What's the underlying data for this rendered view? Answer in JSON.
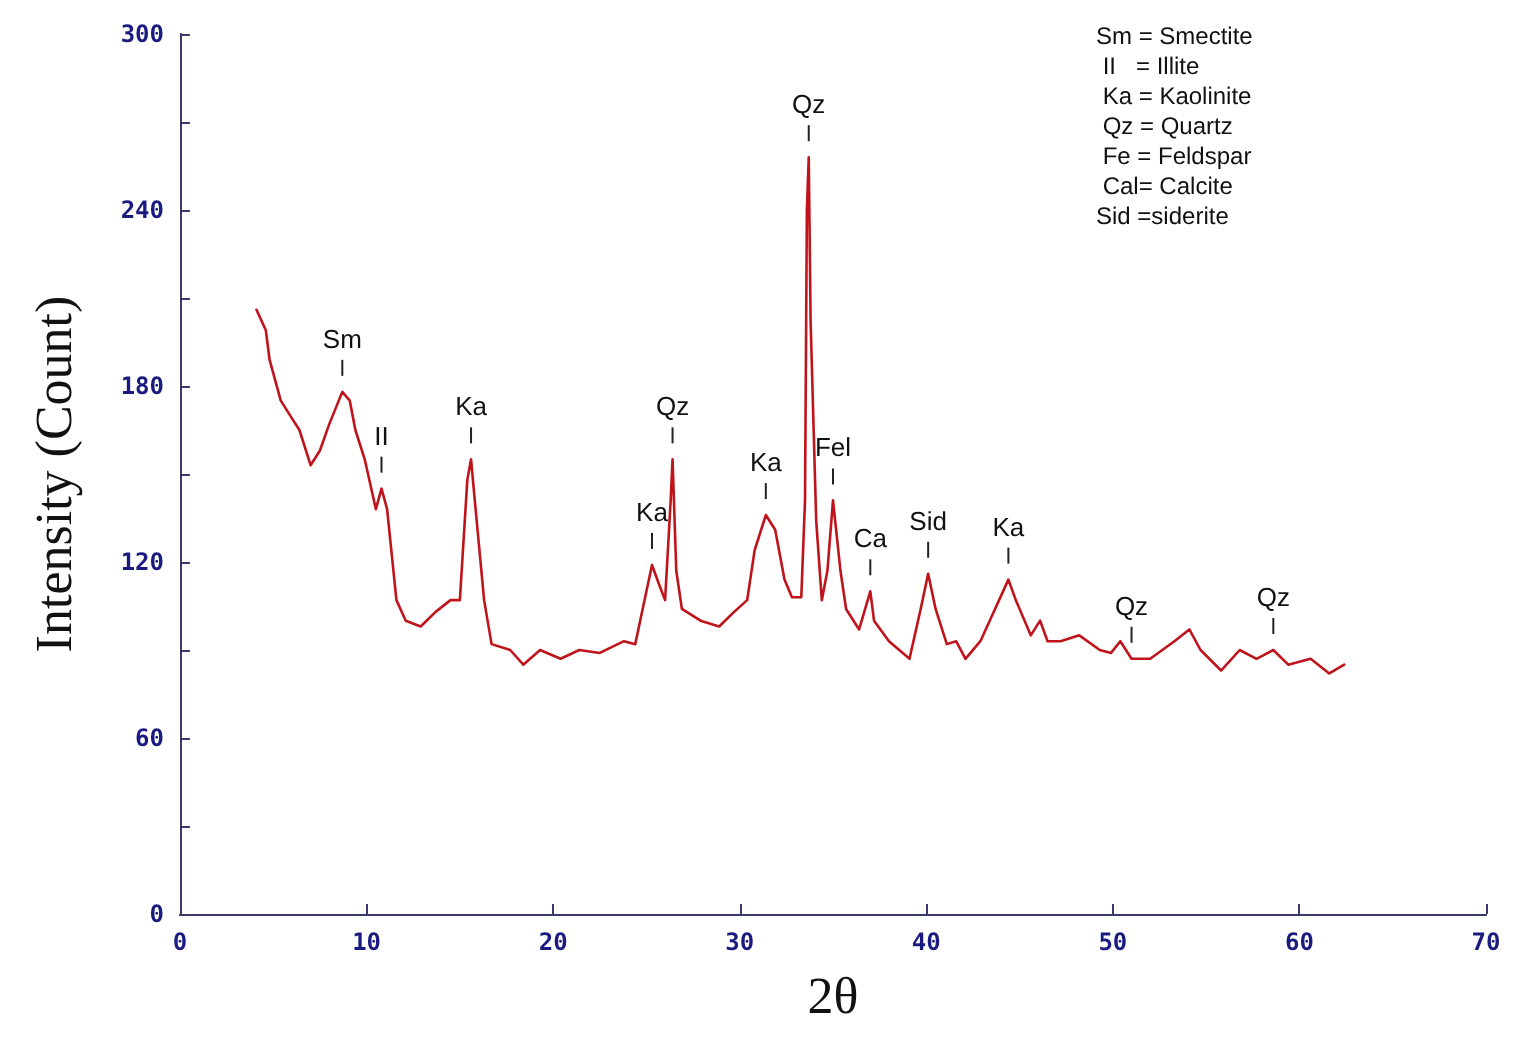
{
  "chart_data": {
    "type": "line",
    "xlabel": "2θ",
    "ylabel": "Intensity (Count)",
    "xlim": [
      0,
      70
    ],
    "xticks": [
      0,
      10,
      20,
      30,
      40,
      50,
      60,
      70
    ],
    "ylim": [
      0,
      300
    ],
    "yticks": [
      0,
      {
        "value": 30,
        "label": null
      },
      60,
      {
        "value": 90,
        "label": null
      },
      120,
      {
        "value": 150,
        "label": null
      },
      180,
      {
        "value": 210,
        "label": null
      },
      240,
      {
        "value": 270,
        "label": null
      },
      300
    ],
    "grid": false,
    "marker": "none",
    "line_style": "solid",
    "series": [
      {
        "color": "#c0141c",
        "x": [
          4.1,
          4.6,
          4.8,
          5.4,
          5.9,
          6.4,
          7.0,
          7.5,
          8.0,
          8.7,
          9.1,
          9.4,
          9.9,
          10.5,
          10.8,
          11.1,
          11.6,
          12.1,
          12.9,
          13.7,
          14.5,
          15.0,
          15.4,
          15.6,
          15.8,
          16.3,
          16.7,
          17.7,
          18.4,
          19.3,
          20.4,
          21.4,
          22.5,
          23.8,
          24.4,
          25.0,
          25.3,
          25.7,
          26.0,
          26.3,
          26.4,
          26.6,
          26.9,
          27.9,
          28.9,
          29.7,
          30.4,
          30.8,
          31.4,
          31.9,
          32.4,
          32.8,
          33.3,
          33.5,
          33.6,
          33.7,
          33.8,
          34.1,
          34.4,
          34.7,
          35.0,
          35.4,
          35.7,
          36.4,
          37.0,
          37.2,
          38.0,
          39.1,
          39.7,
          40.1,
          40.5,
          41.1,
          41.6,
          42.1,
          42.9,
          43.4,
          44.4,
          44.8,
          45.6,
          46.1,
          46.5,
          47.2,
          48.2,
          49.3,
          49.9,
          50.4,
          51.0,
          52.0,
          53.3,
          54.1,
          54.7,
          55.8,
          56.8,
          57.7,
          58.6,
          59.4,
          60.6,
          61.6,
          62.4
        ],
        "values": [
          206,
          199,
          189,
          175,
          170,
          165,
          153,
          158,
          167,
          178,
          175,
          165,
          155,
          138,
          145,
          138,
          107,
          100,
          98,
          103,
          107,
          107,
          148,
          155,
          141,
          107,
          92,
          90,
          85,
          90,
          87,
          90,
          89,
          93,
          92,
          110,
          119,
          112,
          107,
          141,
          155,
          117,
          104,
          100,
          98,
          103,
          107,
          124,
          136,
          131,
          114,
          108,
          108,
          141,
          240,
          258,
          202,
          134,
          107,
          117,
          141,
          117,
          104,
          97,
          110,
          100,
          93,
          87,
          104,
          116,
          104,
          92,
          93,
          87,
          93,
          100,
          114,
          107,
          95,
          100,
          93,
          93,
          95,
          90,
          89,
          93,
          87,
          87,
          93,
          97,
          90,
          83,
          90,
          87,
          90,
          85,
          87,
          82,
          85
        ]
      }
    ],
    "annotations": [
      {
        "text": "Sm",
        "x": 8.7,
        "y": 178
      },
      {
        "text": "II",
        "x": 10.8,
        "y": 145
      },
      {
        "text": "Ka",
        "x": 15.6,
        "y": 155
      },
      {
        "text": "Ka",
        "x": 25.3,
        "y": 119
      },
      {
        "text": "Qz",
        "x": 26.4,
        "y": 155
      },
      {
        "text": "Ka",
        "x": 31.4,
        "y": 136
      },
      {
        "text": "Qz",
        "x": 33.7,
        "y": 258
      },
      {
        "text": "Fel",
        "x": 35.0,
        "y": 141
      },
      {
        "text": "Ca",
        "x": 37.0,
        "y": 110
      },
      {
        "text": "Sid",
        "x": 40.1,
        "y": 116
      },
      {
        "text": "Ka",
        "x": 44.4,
        "y": 114
      },
      {
        "text": "Qz",
        "x": 51.0,
        "y": 87
      },
      {
        "text": "Qz",
        "x": 58.6,
        "y": 90
      },
      "Sm = Smectite",
      " II   = Illite",
      " Ka = Kaolinite",
      " Qz = Quartz",
      " Fe = Feldspar",
      " Cal= Calcite",
      "Sid =siderite"
    ]
  }
}
